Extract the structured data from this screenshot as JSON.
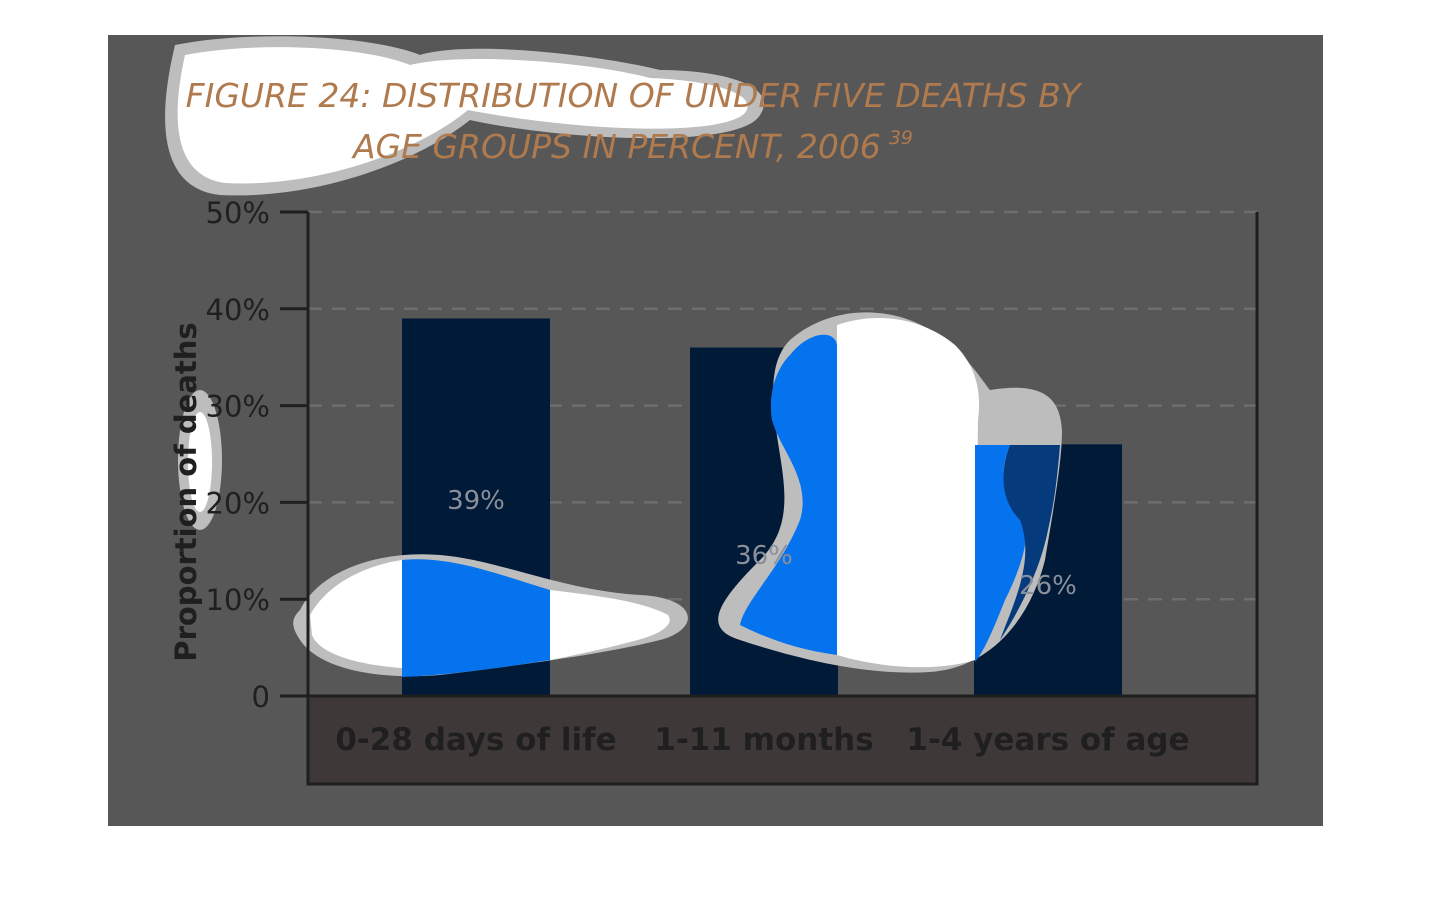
{
  "colors": {
    "page": "#ffffff",
    "panel": "#575757",
    "bar": "#011a38",
    "category_band": "#3e3938",
    "title": "#b07a4f",
    "title_dark": "#3a2418",
    "axis_text": "#1f1f1f",
    "value_label": "#8a8f99",
    "blob_white": "#ffffff",
    "blob_halo": "#bdbdbd",
    "blob_blue": "#0673ee",
    "blob_mid_blue": "#053a7c"
  },
  "chart_data": {
    "type": "bar",
    "title_line1": "FIGURE 24: DISTRIBUTION OF UNDER FIVE DEATHS BY",
    "title_line2": "AGE GROUPS IN PERCENT, 2006",
    "title_superscript": "39",
    "ylabel": "Proportion of deaths",
    "xlabel": "",
    "categories": [
      "0-28 days of life",
      "1-11 months",
      "1-4 years of age"
    ],
    "values": [
      39,
      36,
      26
    ],
    "value_labels": [
      "39%",
      "36%",
      "26%"
    ],
    "ylim": [
      0,
      50
    ],
    "yticks": [
      0,
      10,
      20,
      30,
      40,
      50
    ],
    "ytick_labels": [
      "0",
      "10%",
      "20%",
      "30%",
      "40%",
      "50%"
    ],
    "grid": "dashed horizontal",
    "legend": "none"
  }
}
